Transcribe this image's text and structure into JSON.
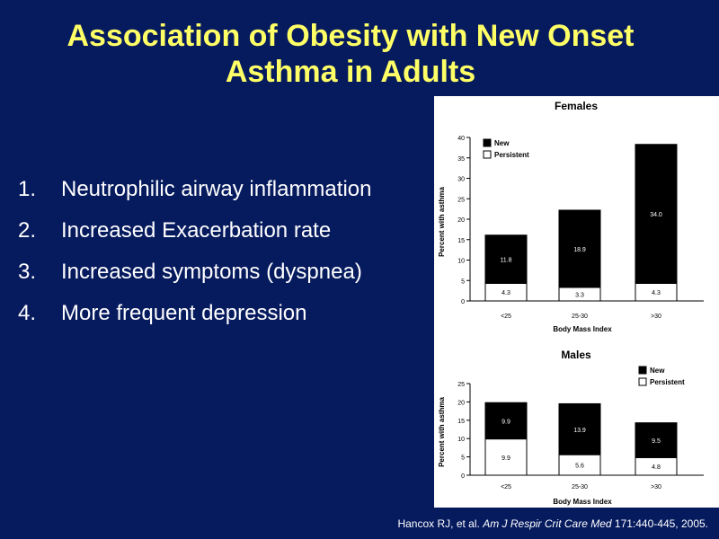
{
  "slide": {
    "title_line1": "Association of Obesity with New Onset",
    "title_line2": "Asthma in Adults",
    "points": [
      {
        "num": "1.",
        "text": "Neutrophilic airway inflammation"
      },
      {
        "num": "2.",
        "text": "Increased Exacerbation rate"
      },
      {
        "num": "3.",
        "text": "Increased symptoms (dyspnea)"
      },
      {
        "num": "4.",
        "text": "More frequent depression"
      }
    ],
    "citation": {
      "authors": "Hancox RJ, et al.",
      "journal": "Am J Respir Crit Care Med",
      "details": "171:440-445, 2005."
    }
  },
  "colors": {
    "background": "#061A5E",
    "title": "#FFFF66",
    "body_text": "#FFFFFF",
    "new_series": "#000000",
    "persistent_series": "#FFFFFF"
  },
  "chart_data": [
    {
      "type": "bar",
      "stacked": true,
      "title": "Females",
      "xlabel": "Body Mass Index",
      "ylabel": "Percent with asthma",
      "categories": [
        "<25",
        "25-30",
        ">30"
      ],
      "ylim": [
        0,
        40
      ],
      "yticks": [
        0,
        5,
        10,
        15,
        20,
        25,
        30,
        35,
        40
      ],
      "series": [
        {
          "name": "Persistent",
          "values": [
            4.3,
            3.3,
            4.3
          ],
          "labels": [
            "4.3",
            "3.3",
            "4.3"
          ]
        },
        {
          "name": "New",
          "values": [
            11.8,
            18.9,
            34.0
          ],
          "labels": [
            "11.8",
            "18.9",
            "34.0"
          ]
        }
      ],
      "legend": "top-left",
      "grid": false
    },
    {
      "type": "bar",
      "stacked": true,
      "title": "Males",
      "xlabel": "Body Mass Index",
      "ylabel": "Percent with asthma",
      "categories": [
        "<25",
        "25-30",
        ">30"
      ],
      "ylim": [
        0,
        25
      ],
      "yticks": [
        0,
        5,
        10,
        15,
        20,
        25
      ],
      "series": [
        {
          "name": "Persistent",
          "values": [
            9.9,
            5.6,
            4.8
          ],
          "labels": [
            "9.9",
            "5.6",
            "4.8"
          ]
        },
        {
          "name": "New",
          "values": [
            9.9,
            13.9,
            9.5
          ],
          "labels": [
            "9.9",
            "13.9",
            "9.5"
          ]
        }
      ],
      "legend": "top-right",
      "grid": false
    }
  ]
}
